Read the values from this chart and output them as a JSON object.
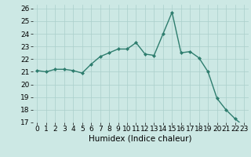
{
  "x": [
    0,
    1,
    2,
    3,
    4,
    5,
    6,
    7,
    8,
    9,
    10,
    11,
    12,
    13,
    14,
    15,
    16,
    17,
    18,
    19,
    20,
    21,
    22,
    23
  ],
  "y": [
    21.1,
    21.0,
    21.2,
    21.2,
    21.1,
    20.9,
    21.6,
    22.2,
    22.5,
    22.8,
    22.8,
    23.3,
    22.4,
    22.3,
    24.0,
    25.7,
    22.5,
    22.6,
    22.1,
    21.0,
    18.9,
    18.0,
    17.3,
    16.7
  ],
  "xlabel": "Humidex (Indice chaleur)",
  "ylim": [
    17,
    26
  ],
  "xlim": [
    -0.5,
    23.5
  ],
  "yticks": [
    17,
    18,
    19,
    20,
    21,
    22,
    23,
    24,
    25,
    26
  ],
  "xticks": [
    0,
    1,
    2,
    3,
    4,
    5,
    6,
    7,
    8,
    9,
    10,
    11,
    12,
    13,
    14,
    15,
    16,
    17,
    18,
    19,
    20,
    21,
    22,
    23
  ],
  "line_color": "#2e7d6e",
  "marker_color": "#2e7d6e",
  "bg_color": "#cce8e4",
  "grid_color": "#aacfcb",
  "tick_fontsize": 6.5,
  "xlabel_fontsize": 7.5
}
